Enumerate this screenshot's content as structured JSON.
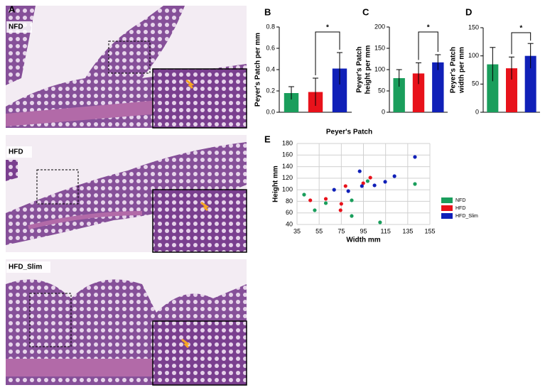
{
  "panel_label": "A",
  "image_panels": [
    {
      "label": "NFD"
    },
    {
      "label": "HFD"
    },
    {
      "label": "HFD_Slim"
    }
  ],
  "chart_data": [
    {
      "type": "bar",
      "panel_label": "B",
      "ylabel": [
        "Peyer's Patch per mm"
      ],
      "categories": [
        null,
        null,
        null
      ],
      "values": [
        0.18,
        0.19,
        0.41
      ],
      "errors": [
        0.06,
        0.13,
        0.15
      ],
      "colors": [
        "#1a9e5c",
        "#e8121b",
        "#1020b8"
      ],
      "annotation": "*",
      "ylim": [
        0,
        0.8
      ],
      "yticks": [
        {
          "value": 0,
          "label": "0.0"
        },
        0.2,
        0.4,
        0.6,
        0.8
      ]
    },
    {
      "type": "bar",
      "panel_label": "C",
      "ylabel": [
        "Peyer's Patch",
        "height per mm"
      ],
      "categories": [
        null,
        null,
        null
      ],
      "values": [
        80,
        91,
        117
      ],
      "errors": [
        20,
        25,
        18
      ],
      "colors": [
        "#1a9e5c",
        "#e8121b",
        "#1020b8"
      ],
      "annotation": "*",
      "ylim": [
        0,
        200
      ],
      "yticks": [
        0,
        50,
        100,
        150,
        200
      ]
    },
    {
      "type": "bar",
      "panel_label": "D",
      "ylabel": [
        "Peyer's Patch",
        "width per mm"
      ],
      "categories": [
        null,
        null,
        null
      ],
      "values": [
        85,
        78,
        100
      ],
      "errors": [
        30,
        20,
        22
      ],
      "colors": [
        "#1a9e5c",
        "#e8121b",
        "#1020b8"
      ],
      "annotation": "*",
      "ylim": [
        0,
        150
      ],
      "yticks": [
        0,
        50,
        100,
        150
      ]
    },
    {
      "type": "scatter",
      "panel_label": "E",
      "title": "Peyer's Patch",
      "xlabel": "Width mm",
      "ylabel": "Height mm",
      "xlim": [
        35,
        155
      ],
      "xticks": [
        35,
        55,
        75,
        95,
        115,
        135,
        155
      ],
      "ylim": [
        40,
        180
      ],
      "yticks": [
        40,
        60,
        80,
        100,
        120,
        140,
        160,
        180
      ],
      "grid": true,
      "legend": "right",
      "series": [
        {
          "name": "NFD",
          "color": "#1a9e5c",
          "x": [
            41.4,
            51,
            61,
            84.4,
            84.4,
            110,
            141.5,
            98.8
          ],
          "y": [
            91.6,
            64.6,
            76.9,
            81.8,
            54.7,
            43.7,
            110,
            115
          ]
        },
        {
          "name": "HFD",
          "color": "#e8121b",
          "x": [
            47,
            61,
            75,
            74.3,
            78.8,
            94.8,
            101.2
          ],
          "y": [
            81.8,
            84.3,
            75.7,
            64.6,
            106.4,
            111.3,
            121
          ]
        },
        {
          "name": "HFD_Slim",
          "color": "#1020b8",
          "x": [
            68.5,
            81.3,
            91.6,
            93.6,
            105,
            114.6,
            123,
            141.5
          ],
          "y": [
            100,
            97.7,
            132,
            106.4,
            107.6,
            113.8,
            123.5,
            156.7
          ]
        }
      ]
    }
  ]
}
